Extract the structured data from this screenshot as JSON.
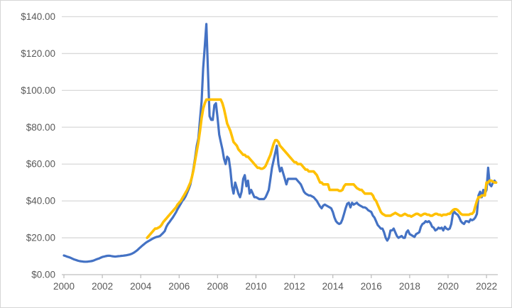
{
  "chart_data": {
    "type": "line",
    "title": "",
    "xlabel": "",
    "ylabel": "",
    "legend": "none",
    "grid": true,
    "sampling": "monthly",
    "x_axis": {
      "tick_labels": [
        "2000",
        "2002",
        "2004",
        "2006",
        "2008",
        "2010",
        "2012",
        "2014",
        "2016",
        "2018",
        "2020",
        "2022"
      ],
      "tick_step_years": 2,
      "range_start": 2000,
      "range_end": 2022.6
    },
    "y_axis": {
      "tick_labels": [
        "$0.00",
        "$20.00",
        "$40.00",
        "$60.00",
        "$80.00",
        "$100.00",
        "$120.00",
        "$140.00"
      ],
      "min": 0,
      "max": 140,
      "step": 20,
      "format": "currency-2dp"
    },
    "colors": {
      "series_blue": "#4472C4",
      "series_yellow": "#FFC000",
      "gridline": "#D9D9D9",
      "axis_line": "#BFBFBF",
      "tick_label": "#595959",
      "frame_border": "#D6D6D6",
      "background": "#FFFFFF"
    },
    "series": [
      {
        "name": "blue",
        "color": "#4472C4",
        "start_year": 2000,
        "start_month": 1,
        "values": [
          10.4,
          10.1,
          9.8,
          9.5,
          9.2,
          8.8,
          8.4,
          8.1,
          7.8,
          7.5,
          7.3,
          7.2,
          7.1,
          7.0,
          7.0,
          7.1,
          7.2,
          7.3,
          7.5,
          7.8,
          8.2,
          8.5,
          8.8,
          9.2,
          9.6,
          9.8,
          10.0,
          10.2,
          10.3,
          10.2,
          10.0,
          9.9,
          9.8,
          9.9,
          10.0,
          10.1,
          10.2,
          10.3,
          10.4,
          10.5,
          10.7,
          10.9,
          11.2,
          11.6,
          12.1,
          12.7,
          13.4,
          14.2,
          15.0,
          15.8,
          16.5,
          17.2,
          17.8,
          18.3,
          18.8,
          19.3,
          19.8,
          20.2,
          20.5,
          20.7,
          21.0,
          21.8,
          22.7,
          23.6,
          26.0,
          27.5,
          28.6,
          29.8,
          31.0,
          32.4,
          33.8,
          35.5,
          37.0,
          38.5,
          40.0,
          41.0,
          42.5,
          44.5,
          46.5,
          49.0,
          53.0,
          58.0,
          63.5,
          70.0,
          74,
          84,
          94,
          112,
          124,
          136,
          110,
          86,
          84,
          84,
          92,
          93,
          85,
          76,
          72,
          68,
          63,
          60,
          64,
          63,
          57,
          48,
          44,
          50,
          47,
          44,
          42,
          45,
          52,
          54,
          48,
          51,
          44,
          46,
          44,
          42,
          42,
          41.5,
          41,
          41,
          41,
          41,
          42,
          44,
          46,
          52,
          58,
          62,
          66,
          70,
          60,
          56,
          58,
          55,
          52,
          49,
          52,
          52,
          52,
          52,
          52,
          52,
          51,
          50,
          49,
          47,
          45,
          44,
          43.5,
          43,
          43,
          42.5,
          42,
          41,
          40,
          38.5,
          37,
          36,
          37.5,
          38,
          37.5,
          37,
          36.5,
          36,
          34,
          31,
          29,
          28,
          27.5,
          28,
          30,
          33,
          36,
          38.5,
          39,
          36.5,
          39,
          38,
          38.5,
          39,
          38,
          37.5,
          37,
          36.5,
          36.5,
          36,
          35,
          34.5,
          34,
          32,
          31,
          29,
          27,
          26,
          25,
          25,
          23,
          20,
          18.5,
          20,
          24,
          24,
          25,
          23,
          21,
          20,
          20.5,
          21,
          20,
          20,
          23,
          24,
          22,
          21.5,
          21,
          20.5,
          22,
          22.5,
          23,
          26,
          27.5,
          28,
          29,
          28.5,
          29,
          28,
          26,
          25.5,
          24,
          24.5,
          25.5,
          25,
          25.5,
          24,
          26,
          25,
          24.5,
          25,
          27.5,
          33,
          34,
          33,
          32.5,
          31,
          29,
          28,
          27.5,
          29,
          29,
          28.5,
          30,
          29.5,
          30,
          31,
          33,
          43,
          45,
          42,
          46,
          44,
          46,
          58,
          49,
          48,
          50,
          51,
          50
        ]
      },
      {
        "name": "yellow",
        "color": "#FFC000",
        "start_year": 2004,
        "start_month": 5,
        "values": [
          20,
          21,
          22,
          23,
          24,
          25,
          25,
          25.5,
          26,
          27,
          28.5,
          29.5,
          30.5,
          31.5,
          32.5,
          33.5,
          34.5,
          35.5,
          36.5,
          38,
          39,
          40,
          41.5,
          43,
          44.5,
          46,
          48,
          50,
          53,
          57,
          62,
          67,
          72,
          78,
          85,
          90,
          93,
          95,
          95,
          95,
          95,
          95,
          95,
          95,
          95,
          95,
          95,
          93,
          90,
          86,
          82,
          80,
          78,
          75,
          72,
          71,
          70,
          68,
          67,
          66,
          65,
          65,
          64,
          64,
          63,
          62,
          61,
          60,
          59,
          58,
          58,
          57.5,
          57.5,
          58,
          59,
          61,
          63,
          65,
          68,
          71,
          73,
          73,
          72,
          70,
          69,
          68,
          67,
          66,
          65,
          64,
          63,
          62,
          61,
          61,
          60,
          60,
          60,
          59,
          58,
          57,
          57,
          56,
          56,
          56,
          56,
          55,
          54,
          52,
          50,
          50,
          49,
          49,
          49,
          49,
          46,
          46,
          46,
          46,
          46,
          46,
          45.5,
          45.5,
          46,
          48,
          49,
          49,
          49,
          49,
          49,
          49,
          48,
          47,
          46.5,
          46,
          46,
          45,
          44,
          44,
          44,
          44,
          44,
          43,
          41,
          40,
          38,
          36,
          34,
          33,
          32.5,
          32,
          32,
          32,
          32,
          32.5,
          33,
          33.5,
          33,
          32.5,
          32,
          32,
          32.5,
          33,
          32.5,
          32,
          32,
          31.5,
          32,
          32.5,
          33,
          33,
          32.5,
          32,
          32.5,
          33,
          33,
          32.5,
          32.5,
          32,
          32,
          32.5,
          33,
          33,
          32.5,
          32.5,
          32,
          32.5,
          32.5,
          32.5,
          33,
          33,
          34,
          35,
          35.5,
          35.5,
          35,
          34,
          33,
          32.5,
          32.5,
          32.5,
          32.5,
          32.5,
          33,
          33,
          34,
          37,
          40,
          42,
          42,
          43,
          43,
          43,
          50,
          50,
          51,
          51,
          50.5,
          50,
          50
        ]
      }
    ]
  }
}
